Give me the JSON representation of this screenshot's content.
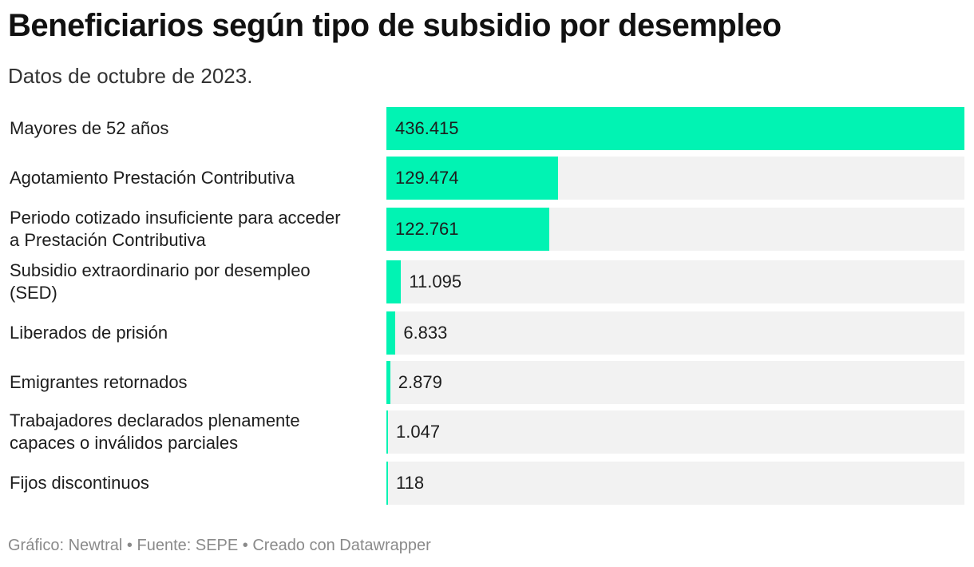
{
  "chart_data": {
    "type": "bar",
    "orientation": "horizontal",
    "title": "Beneficiarios según tipo de subsidio por desempleo",
    "subtitle": "Datos de octubre de 2023.",
    "categories": [
      "Mayores de 52 años",
      "Agotamiento Prestación Contributiva",
      "Periodo cotizado insuficiente para acceder a Prestación Contributiva",
      "Subsidio extraordinario por desempleo (SED)",
      "Liberados de prisión",
      "Emigrantes retornados",
      "Trabajadores declarados plenamente capaces o inválidos parciales",
      "Fijos discontinuos"
    ],
    "label_lines": [
      [
        "Mayores de 52 años"
      ],
      [
        "Agotamiento Prestación Contributiva"
      ],
      [
        "Periodo cotizado insuficiente para acceder",
        "a Prestación Contributiva"
      ],
      [
        "Subsidio extraordinario por desempleo",
        "(SED)"
      ],
      [
        "Liberados de prisión"
      ],
      [
        "Emigrantes retornados"
      ],
      [
        "Trabajadores declarados plenamente",
        "capaces o inválidos parciales"
      ],
      [
        "Fijos discontinuos"
      ]
    ],
    "values": [
      436415,
      129474,
      122761,
      11095,
      6833,
      2879,
      1047,
      118
    ],
    "value_labels": [
      "436.415",
      "129.474",
      "122.761",
      "11.095",
      "6.833",
      "2.879",
      "1.047",
      "118"
    ],
    "xlim": [
      0,
      436415
    ],
    "bar_color": "#01f3b3",
    "background_color": "#f2f2f2",
    "xlabel": "",
    "ylabel": ""
  },
  "footer": "Gráfico: Newtral • Fuente: SEPE • Creado con Datawrapper"
}
